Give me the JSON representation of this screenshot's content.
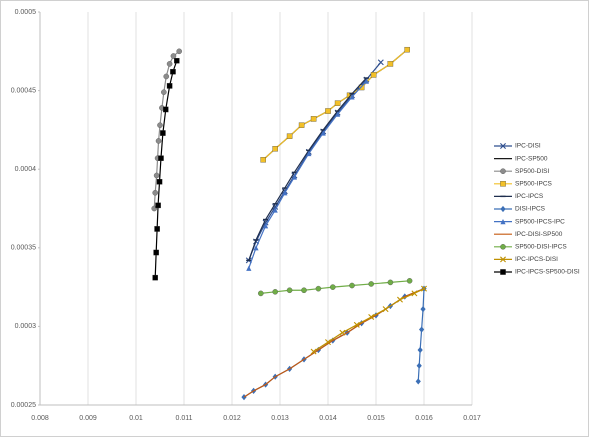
{
  "chart_data": {
    "type": "scatter",
    "grid": "x",
    "legend": "right",
    "xlim": [
      0.008,
      0.017
    ],
    "xticks": [
      0.008,
      0.009,
      0.01,
      0.011,
      0.012,
      0.013,
      0.014,
      0.015,
      0.016,
      0.017
    ],
    "ylim": [
      0.00025,
      0.0005
    ],
    "yticks": [
      0.00025,
      0.0003,
      0.00035,
      0.0004,
      0.00045,
      0.0005
    ],
    "series": [
      {
        "name": "IPC-DISI",
        "color": "#2f4f8f",
        "marker": "x",
        "x": [
          0.01235,
          0.0125,
          0.0127,
          0.0129,
          0.0131,
          0.0133,
          0.0136,
          0.0139,
          0.0142,
          0.0145,
          0.0148,
          0.0151
        ],
        "values": [
          0.000342,
          0.000354,
          0.000366,
          0.000376,
          0.000386,
          0.000396,
          0.000411,
          0.000424,
          0.000436,
          0.000447,
          0.000457,
          0.000468
        ]
      },
      {
        "name": "IPC-SP500",
        "color": "#1a1a1a",
        "marker": "none",
        "x": [
          0.01265,
          0.0129,
          0.0132,
          0.01345,
          0.0137,
          0.014,
          0.0142,
          0.01445,
          0.0147,
          0.01495,
          0.0153,
          0.01565
        ],
        "values": [
          0.000406,
          0.000413,
          0.000421,
          0.000428,
          0.000432,
          0.000437,
          0.000442,
          0.000447,
          0.000452,
          0.00046,
          0.000467,
          0.000476
        ]
      },
      {
        "name": "SP500-DISI",
        "color": "#8c8c8c",
        "marker": "circle",
        "x": [
          0.01038,
          0.0104,
          0.01043,
          0.01045,
          0.01047,
          0.0105,
          0.01054,
          0.01058,
          0.01063,
          0.0107,
          0.01078,
          0.0109
        ],
        "values": [
          0.000375,
          0.000385,
          0.000396,
          0.000407,
          0.000418,
          0.000428,
          0.000439,
          0.000449,
          0.000459,
          0.000467,
          0.000472,
          0.000475
        ]
      },
      {
        "name": "SP500-IPCS",
        "color": "#f2c029",
        "marker": "square",
        "x": [
          0.01265,
          0.0129,
          0.0132,
          0.01345,
          0.0137,
          0.014,
          0.0142,
          0.01445,
          0.0147,
          0.01495,
          0.0153,
          0.01565
        ],
        "values": [
          0.000406,
          0.000413,
          0.000421,
          0.000428,
          0.000432,
          0.000437,
          0.000442,
          0.000447,
          0.000452,
          0.00046,
          0.000467,
          0.000476
        ]
      },
      {
        "name": "IPC-IPCS",
        "color": "#1f2f4f",
        "marker": "dash",
        "x": [
          0.01235,
          0.0125,
          0.0127,
          0.0129,
          0.0131,
          0.0133,
          0.0136,
          0.0139,
          0.0142,
          0.0145,
          0.0148
        ],
        "values": [
          0.000342,
          0.000355,
          0.000368,
          0.000378,
          0.000388,
          0.000398,
          0.000412,
          0.000425,
          0.000437,
          0.000448,
          0.000458
        ]
      },
      {
        "name": "DISI-IPCS",
        "color": "#3b6fb6",
        "marker": "diamond",
        "x": [
          0.01225,
          0.01245,
          0.0127,
          0.0129,
          0.0132,
          0.0135,
          0.0138,
          0.0141,
          0.0144,
          0.0147,
          0.015,
          0.0153,
          0.0156,
          0.016,
          0.01598,
          0.01595,
          0.01592,
          0.0159,
          0.01588
        ],
        "values": [
          0.000255,
          0.000259,
          0.000263,
          0.000268,
          0.000273,
          0.000279,
          0.000285,
          0.000291,
          0.000296,
          0.000302,
          0.000307,
          0.000313,
          0.000319,
          0.000324,
          0.000311,
          0.000298,
          0.000285,
          0.000275,
          0.000265
        ]
      },
      {
        "name": "SP500-IPCS-IPC",
        "color": "#4472c4",
        "marker": "triangle",
        "x": [
          0.01235,
          0.0125,
          0.0127,
          0.0129,
          0.0131,
          0.0133,
          0.0136,
          0.0139,
          0.0142,
          0.0145,
          0.0148
        ],
        "values": [
          0.000337,
          0.00035,
          0.000364,
          0.000374,
          0.000385,
          0.000395,
          0.00041,
          0.000423,
          0.000435,
          0.000446,
          0.000456
        ]
      },
      {
        "name": "IPC-DISI-SP500",
        "color": "#c55a11",
        "marker": "none",
        "x": [
          0.01225,
          0.01245,
          0.0127,
          0.0129,
          0.0132,
          0.0135,
          0.0138,
          0.0141,
          0.0144,
          0.0147,
          0.015,
          0.0153,
          0.0156,
          0.016
        ],
        "values": [
          0.000255,
          0.000259,
          0.000263,
          0.000268,
          0.000273,
          0.000279,
          0.000285,
          0.000291,
          0.000296,
          0.000302,
          0.000307,
          0.000313,
          0.000319,
          0.000324
        ]
      },
      {
        "name": "SP500-DISI-IPCS",
        "color": "#70ad47",
        "marker": "circle",
        "x": [
          0.0126,
          0.0129,
          0.0132,
          0.0135,
          0.0138,
          0.0141,
          0.0145,
          0.0149,
          0.0153,
          0.0157
        ],
        "values": [
          0.000321,
          0.000322,
          0.000323,
          0.000323,
          0.000324,
          0.000325,
          0.000326,
          0.000327,
          0.000328,
          0.000329
        ]
      },
      {
        "name": "IPC-IPCS-DISI",
        "color": "#bf9000",
        "marker": "x",
        "x": [
          0.0137,
          0.014,
          0.0143,
          0.0146,
          0.0149,
          0.0152,
          0.0155,
          0.0158,
          0.016
        ],
        "values": [
          0.000284,
          0.00029,
          0.000296,
          0.000301,
          0.000306,
          0.000311,
          0.000317,
          0.000321,
          0.000324
        ]
      },
      {
        "name": "IPC-IPCS-SP500-DISI",
        "color": "#000000",
        "marker": "square",
        "x": [
          0.0104,
          0.01042,
          0.01044,
          0.01046,
          0.01049,
          0.01052,
          0.01056,
          0.01062,
          0.0107,
          0.01077,
          0.01085
        ],
        "values": [
          0.000331,
          0.000347,
          0.000362,
          0.000377,
          0.000392,
          0.000407,
          0.000423,
          0.000438,
          0.000453,
          0.000462,
          0.000469
        ]
      }
    ]
  }
}
